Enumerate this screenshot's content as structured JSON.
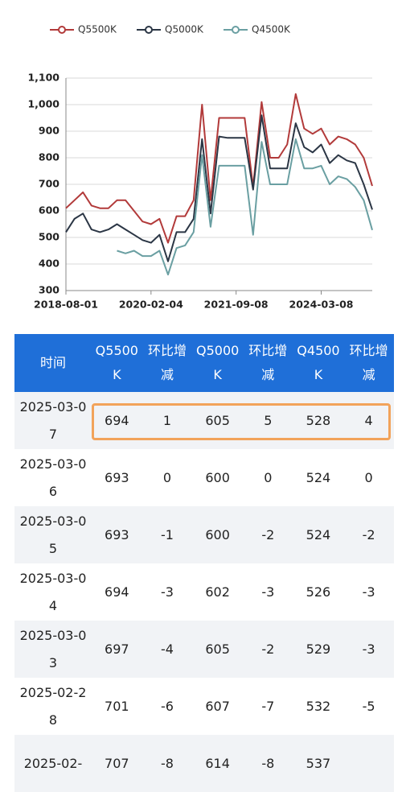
{
  "chart_data": {
    "type": "line",
    "categories": [
      "2018-08-01",
      null,
      null,
      null,
      null,
      null,
      null,
      null,
      null,
      null,
      "2020-02-04",
      null,
      null,
      null,
      null,
      null,
      null,
      null,
      null,
      null,
      "2021-09-08",
      null,
      null,
      null,
      null,
      null,
      null,
      null,
      null,
      null,
      "2024-03-08",
      null,
      null,
      null,
      null,
      null,
      null
    ],
    "series": [
      {
        "name": "Q5500K",
        "color": "#b23a3a",
        "values": [
          610,
          640,
          670,
          620,
          610,
          610,
          640,
          640,
          600,
          560,
          550,
          570,
          480,
          580,
          580,
          640,
          1000,
          640,
          950,
          950,
          950,
          950,
          690,
          1010,
          800,
          800,
          850,
          1040,
          910,
          890,
          910,
          850,
          880,
          870,
          850,
          800,
          694
        ]
      },
      {
        "name": "Q5000K",
        "color": "#2b3645",
        "values": [
          520,
          570,
          590,
          530,
          520,
          530,
          550,
          530,
          510,
          490,
          480,
          510,
          410,
          520,
          520,
          570,
          870,
          590,
          880,
          875,
          875,
          875,
          680,
          960,
          760,
          760,
          760,
          930,
          840,
          820,
          850,
          780,
          810,
          790,
          780,
          700,
          605
        ]
      },
      {
        "name": "Q4500K",
        "color": "#6a9fa2",
        "values": [
          null,
          null,
          null,
          null,
          null,
          null,
          450,
          440,
          450,
          430,
          430,
          450,
          360,
          460,
          470,
          520,
          810,
          540,
          770,
          770,
          770,
          770,
          510,
          860,
          700,
          700,
          700,
          870,
          760,
          760,
          770,
          700,
          730,
          720,
          690,
          640,
          528
        ]
      }
    ],
    "ylim": [
      300,
      1100
    ],
    "yticks": [
      300,
      400,
      500,
      600,
      700,
      800,
      900,
      {
        "value": 1000,
        "label": "1,000"
      },
      {
        "value": 1100,
        "label": "1,100"
      }
    ],
    "grid": true,
    "legend": "top"
  },
  "table": {
    "headers": [
      "时间",
      "Q5500K",
      "环比增减",
      "Q5000K",
      "环比增减",
      "Q4500K",
      "环比增减"
    ],
    "rows": [
      [
        "2025-03-07",
        694,
        1,
        605,
        5,
        528,
        4
      ],
      [
        "2025-03-06",
        693,
        0,
        600,
        0,
        524,
        0
      ],
      [
        "2025-03-05",
        693,
        -1,
        600,
        -2,
        524,
        -2
      ],
      [
        "2025-03-04",
        694,
        -3,
        602,
        -3,
        526,
        -3
      ],
      [
        "2025-03-03",
        697,
        -4,
        605,
        -2,
        529,
        -3
      ],
      [
        "2025-02-28",
        701,
        -6,
        607,
        -7,
        532,
        -5
      ],
      [
        "2025-02-",
        707,
        -8,
        614,
        -8,
        537
      ]
    ]
  }
}
